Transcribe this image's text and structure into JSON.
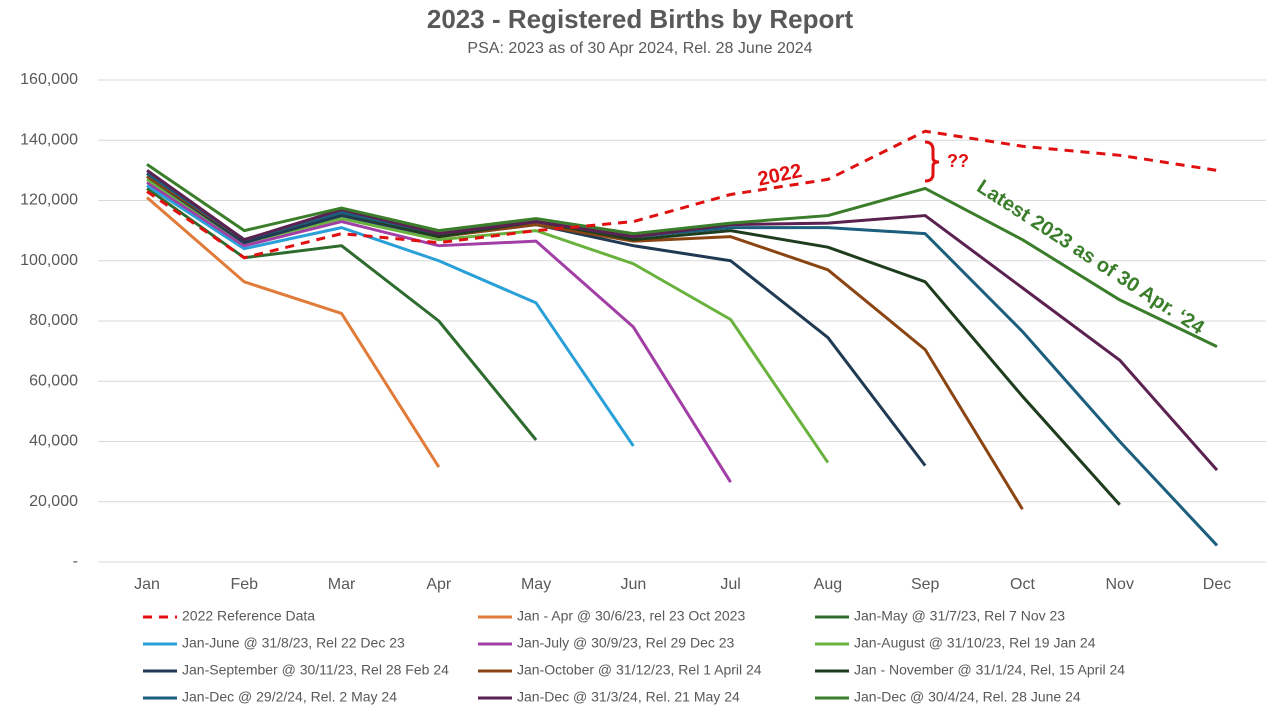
{
  "chart_data": {
    "type": "line",
    "title": "2023 - Registered Births by Report",
    "subtitle": "PSA: 2023 as of 30 Apr 2024, Rel. 28 June 2024",
    "categories": [
      "Jan",
      "Feb",
      "Mar",
      "Apr",
      "May",
      "Jun",
      "Jul",
      "Aug",
      "Sep",
      "Oct",
      "Nov",
      "Dec"
    ],
    "ylim": [
      0,
      160000
    ],
    "yticks": [
      {
        "value": 0,
        "label": "-"
      },
      {
        "value": 20000,
        "label": "20,000"
      },
      {
        "value": 40000,
        "label": "40,000"
      },
      {
        "value": 60000,
        "label": "60,000"
      },
      {
        "value": 80000,
        "label": "80,000"
      },
      {
        "value": 100000,
        "label": "100,000"
      },
      {
        "value": 120000,
        "label": "120,000"
      },
      {
        "value": 140000,
        "label": "140,000"
      },
      {
        "value": 160000,
        "label": "160,000"
      }
    ],
    "grid": true,
    "legend": "bottom",
    "annotations": [
      {
        "text": "2022",
        "color": "#e01010"
      },
      {
        "text": "??",
        "color": "#e01010"
      },
      {
        "text": "Latest 2023 as of 30 Apr. ‘24",
        "color": "#3a7d2a"
      }
    ],
    "series": [
      {
        "name": "2022 Reference Data",
        "color": "#e01010",
        "style": "dashed",
        "values": [
          123000,
          101000,
          109000,
          106000,
          110000,
          113000,
          122000,
          127000,
          143000,
          138000,
          135000,
          130000
        ]
      },
      {
        "name": "Jan - Apr @ 30/6/23, rel 23 Oct 2023",
        "color": "#e07b39",
        "values": [
          121000,
          93000,
          82500,
          31500,
          null,
          null,
          null,
          null,
          null,
          null,
          null,
          null
        ]
      },
      {
        "name": "Jan-May @ 31/7/23, Rel 7 Nov 23",
        "color": "#2e6b2e",
        "values": [
          124000,
          101000,
          105000,
          80000,
          40500,
          null,
          null,
          null,
          null,
          null,
          null,
          null
        ]
      },
      {
        "name": "Jan-June @ 31/8/23, Rel 22 Dec 23",
        "color": "#2aa0d8",
        "values": [
          125000,
          104000,
          111000,
          100000,
          86000,
          38500,
          null,
          null,
          null,
          null,
          null,
          null
        ]
      },
      {
        "name": "Jan-July @ 30/9/23, Rel 29 Dec 23",
        "color": "#a23fa6",
        "values": [
          126000,
          105000,
          113000,
          105000,
          106500,
          78000,
          26500,
          null,
          null,
          null,
          null,
          null
        ]
      },
      {
        "name": "Jan-August @ 31/10/23, Rel 19 Jan 24",
        "color": "#6ab23e",
        "values": [
          127000,
          106000,
          114000,
          107000,
          110000,
          99000,
          80500,
          33000,
          null,
          null,
          null,
          null
        ]
      },
      {
        "name": "Jan-September @ 30/11/23, Rel 28 Feb 24",
        "color": "#1f3a52",
        "values": [
          128000,
          106000,
          115000,
          108000,
          112000,
          105000,
          100000,
          74500,
          32000,
          null,
          null,
          null
        ]
      },
      {
        "name": "Jan-October @ 31/12/23, Rel 1 April 24",
        "color": "#8b4513",
        "values": [
          128000,
          107000,
          116000,
          108000,
          112000,
          106500,
          108000,
          97000,
          70500,
          17500,
          null,
          null
        ]
      },
      {
        "name": "Jan - November @ 31/1/24, Rel, 15 April 24",
        "color": "#1e3d1e",
        "values": [
          129000,
          107000,
          116000,
          108000,
          113000,
          107000,
          110000,
          104500,
          93000,
          55000,
          19000,
          null
        ]
      },
      {
        "name": "Jan-Dec @ 29/2/24, Rel. 2 May 24",
        "color": "#1b5e7d",
        "values": [
          129000,
          107000,
          116000,
          109000,
          113000,
          108000,
          111000,
          111000,
          109000,
          76500,
          40000,
          5500
        ]
      },
      {
        "name": "Jan-Dec @ 31/3/24, Rel. 21 May 24",
        "color": "#5b2150",
        "values": [
          130000,
          107000,
          117000,
          109000,
          113000,
          108000,
          112000,
          112500,
          115000,
          91000,
          67000,
          30500
        ]
      },
      {
        "name": "Jan-Dec @ 30/4/24, Rel. 28 June 24",
        "color": "#3a7d2a",
        "values": [
          132000,
          110000,
          117500,
          110000,
          114000,
          109000,
          112500,
          115000,
          124000,
          107000,
          87000,
          71500
        ]
      }
    ]
  }
}
